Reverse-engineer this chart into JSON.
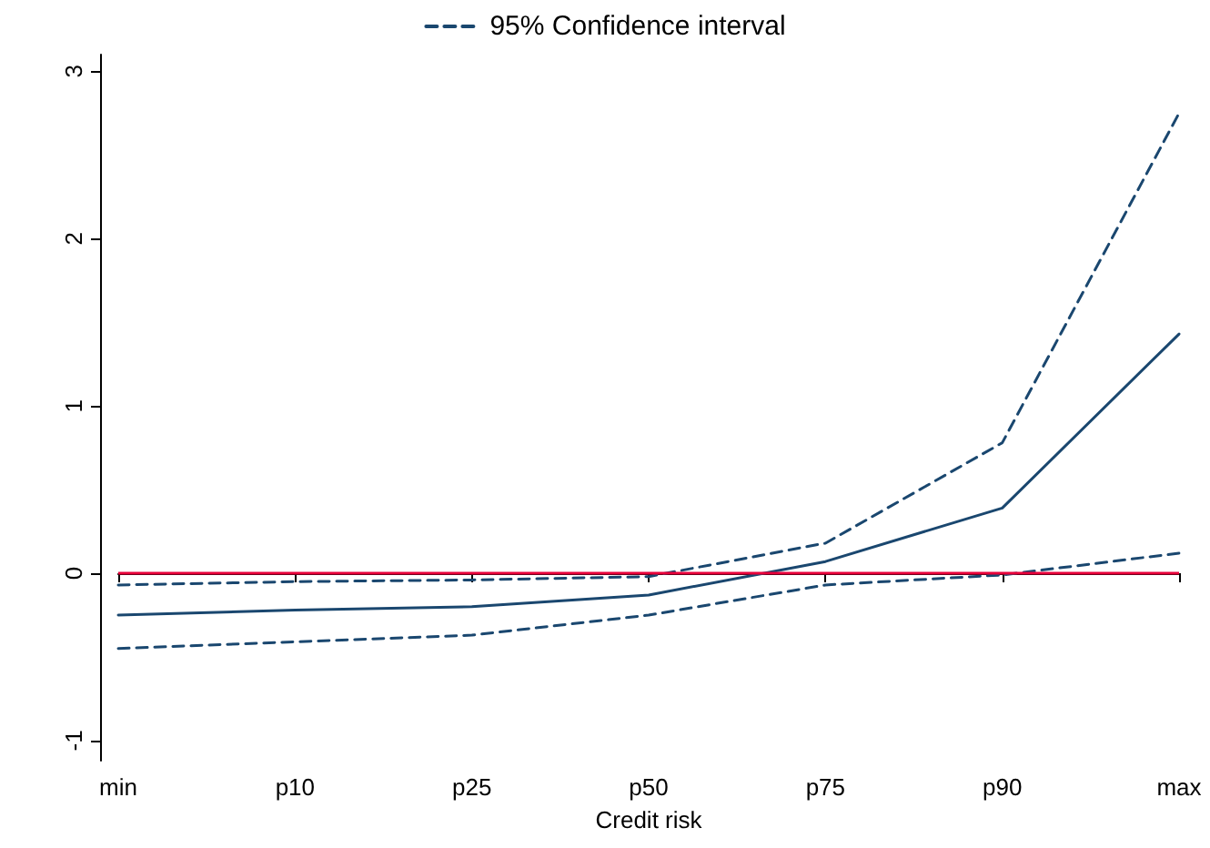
{
  "chart_data": {
    "type": "line",
    "xlabel": "Credit risk",
    "categories": [
      "min",
      "p10",
      "p25",
      "p50",
      "p75",
      "p90",
      "max"
    ],
    "series": [
      {
        "color": "#1a476f",
        "line_style": "solid",
        "values": [
          -0.25,
          -0.22,
          -0.2,
          -0.13,
          0.07,
          0.39,
          1.43
        ]
      },
      {
        "name": "95% Confidence interval",
        "color": "#1a476f",
        "line_style": "dashed",
        "values": [
          -0.07,
          -0.05,
          -0.04,
          -0.02,
          0.18,
          0.78,
          2.75
        ]
      },
      {
        "color": "#1a476f",
        "line_style": "dashed",
        "values": [
          -0.45,
          -0.41,
          -0.37,
          -0.25,
          -0.07,
          -0.01,
          0.12
        ]
      }
    ],
    "ylim": [
      -1.12,
      3.1
    ],
    "yticks": [
      -1,
      0,
      1,
      2,
      3
    ],
    "ref_lines": [
      {
        "axis": "y",
        "value": 0,
        "color": "#e8003a"
      }
    ],
    "legend": "top",
    "grid": false,
    "marker": "none"
  }
}
